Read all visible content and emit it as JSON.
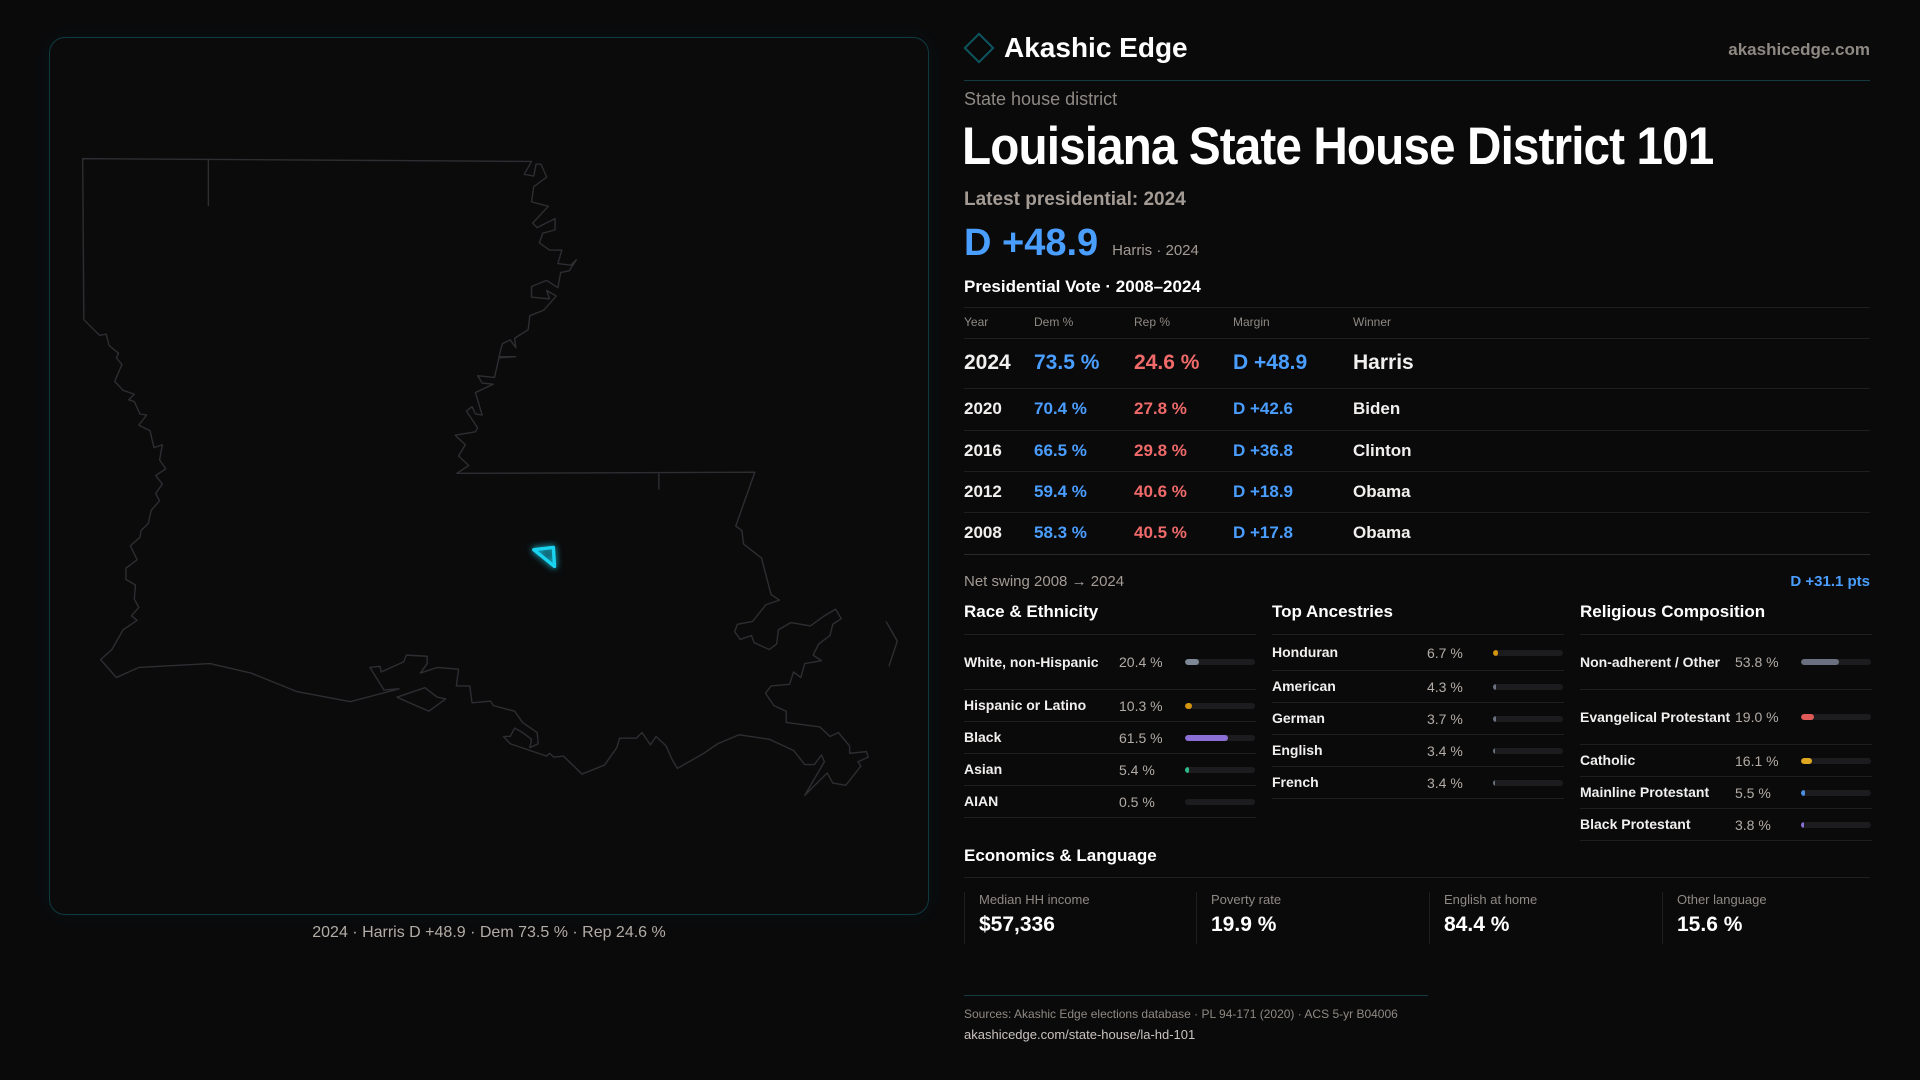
{
  "brand": {
    "name": "Akashic Edge",
    "site": "akashicedge.com"
  },
  "district": {
    "kind": "State house district",
    "title": "Louisiana State House District 101"
  },
  "latest": {
    "label": "Latest presidential: 2024",
    "margin": "D +48.9",
    "sub": "Harris · 2024"
  },
  "map": {
    "caption": "2024 · Harris D +48.9 · Dem 73.5 % · Rep 24.6 %",
    "highlight_color": "#19d3f0"
  },
  "presidential": {
    "title": "Presidential Vote · 2008–2024",
    "headers": [
      "Year",
      "Dem %",
      "Rep %",
      "Margin",
      "Winner"
    ],
    "rows": [
      {
        "year": "2024",
        "dem": "73.5 %",
        "rep": "24.6 %",
        "margin": "D +48.9",
        "winner": "Harris"
      },
      {
        "year": "2020",
        "dem": "70.4 %",
        "rep": "27.8 %",
        "margin": "D +42.6",
        "winner": "Biden"
      },
      {
        "year": "2016",
        "dem": "66.5 %",
        "rep": "29.8 %",
        "margin": "D +36.8",
        "winner": "Clinton"
      },
      {
        "year": "2012",
        "dem": "59.4 %",
        "rep": "40.6 %",
        "margin": "D +18.9",
        "winner": "Obama"
      },
      {
        "year": "2008",
        "dem": "58.3 %",
        "rep": "40.5 %",
        "margin": "D +17.8",
        "winner": "Obama"
      }
    ],
    "swing_label": "Net swing 2008 → 2024",
    "swing_value": "D +31.1 pts"
  },
  "colors": {
    "dem": "#4a9eff",
    "rep": "#f06a6a"
  },
  "race": {
    "title": "Race & Ethnicity",
    "items": [
      {
        "label": "White, non-Hispanic",
        "pct": "20.4 %",
        "value": 20.4,
        "color": "#7d8796"
      },
      {
        "label": "Hispanic or Latino",
        "pct": "10.3 %",
        "value": 10.3,
        "color": "#d4950f"
      },
      {
        "label": "Black",
        "pct": "61.5 %",
        "value": 61.5,
        "color": "#8b6fd6"
      },
      {
        "label": "Asian",
        "pct": "5.4 %",
        "value": 5.4,
        "color": "#2fb88a"
      },
      {
        "label": "AIAN",
        "pct": "0.5 %",
        "value": 0.5,
        "color": "#5a5f6a"
      }
    ]
  },
  "ancestry": {
    "title": "Top Ancestries",
    "items": [
      {
        "label": "Honduran",
        "pct": "6.7 %",
        "value": 6.7,
        "color": "#d4950f"
      },
      {
        "label": "American",
        "pct": "4.3 %",
        "value": 4.3,
        "color": "#6b7280"
      },
      {
        "label": "German",
        "pct": "3.7 %",
        "value": 3.7,
        "color": "#6b7280"
      },
      {
        "label": "English",
        "pct": "3.4 %",
        "value": 3.4,
        "color": "#6b7280"
      },
      {
        "label": "French",
        "pct": "3.4 %",
        "value": 3.4,
        "color": "#6b7280"
      }
    ]
  },
  "religion": {
    "title": "Religious Composition",
    "items": [
      {
        "label": "Non-adherent / Other",
        "pct": "53.8 %",
        "value": 53.8,
        "color": "#6b7080"
      },
      {
        "label": "Evangelical Protestant",
        "pct": "19.0 %",
        "value": 19.0,
        "color": "#e05a5a"
      },
      {
        "label": "Catholic",
        "pct": "16.1 %",
        "value": 16.1,
        "color": "#e0a820"
      },
      {
        "label": "Mainline Protestant",
        "pct": "5.5 %",
        "value": 5.5,
        "color": "#4a8fe0"
      },
      {
        "label": "Black Protestant",
        "pct": "3.8 %",
        "value": 3.8,
        "color": "#8b6fd6"
      }
    ]
  },
  "economics": {
    "title": "Economics & Language",
    "cards": [
      {
        "label": "Median HH income",
        "value": "$57,336"
      },
      {
        "label": "Poverty rate",
        "value": "19.9 %"
      },
      {
        "label": "English at home",
        "value": "84.4 %"
      },
      {
        "label": "Other language",
        "value": "15.6 %"
      }
    ]
  },
  "footer": {
    "sources": "Sources: Akashic Edge elections database · PL 94-171 (2020) · ACS 5-yr B04006",
    "url": "akashicedge.com/state-house/la-hd-101"
  }
}
